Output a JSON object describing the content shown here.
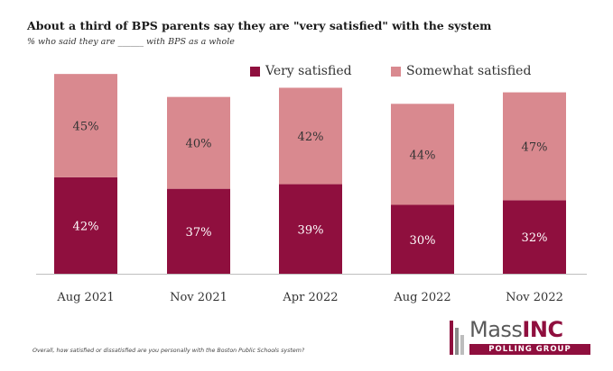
{
  "chart_data": {
    "type": "bar",
    "stacked": true,
    "title": "About a third of BPS parents say they are \"very satisfied\" with the system",
    "subtitle": "% who said they are ______ with BPS as a whole",
    "categories": [
      "Aug 2021",
      "Nov 2021",
      "Apr 2022",
      "Aug 2022",
      "Nov 2022"
    ],
    "series": [
      {
        "name": "Very satisfied",
        "values": [
          42,
          37,
          39,
          30,
          32
        ],
        "color": "#8f0f3e"
      },
      {
        "name": "Somewhat satisfied",
        "values": [
          45,
          40,
          42,
          44,
          47
        ],
        "color": "#d9898f"
      }
    ],
    "value_labels": {
      "Very satisfied": [
        "42%",
        "37%",
        "39%",
        "30%",
        "32%"
      ],
      "Somewhat satisfied": [
        "45%",
        "40%",
        "42%",
        "44%",
        "47%"
      ]
    },
    "ylim": [
      0,
      100
    ],
    "grid": false,
    "legend_position": "top-right"
  },
  "footnote": "Overall, how satisfied or dissatisfied are you personally with the Boston Public Schools system?",
  "logo": {
    "main": "Mass",
    "accent": "INC",
    "sub": "POLLING GROUP"
  }
}
